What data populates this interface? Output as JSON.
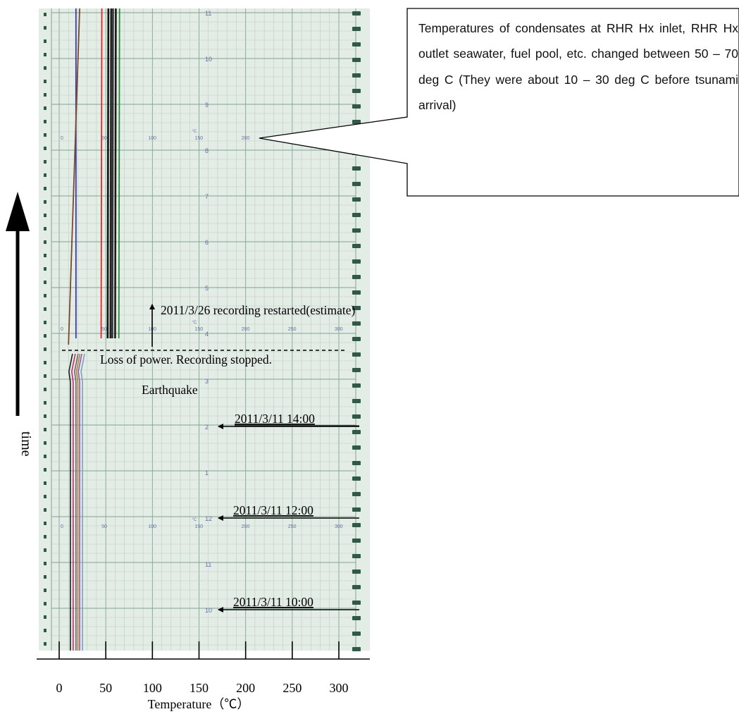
{
  "chart_data": {
    "type": "line",
    "title": "",
    "xlabel": "Temperature（℃）",
    "ylabel": "time",
    "xlim": [
      0,
      300
    ],
    "x_ticks": [
      0,
      50,
      100,
      150,
      200,
      250,
      300
    ],
    "paper_scale_labels": [
      "0",
      "50",
      "100",
      "150",
      "200",
      "250",
      "300"
    ],
    "paper_hour_labels_upper": [
      "4",
      "5",
      "6",
      "7",
      "8",
      "9",
      "10",
      "11"
    ],
    "paper_hour_labels_lower": [
      "10",
      "11",
      "12",
      "1",
      "2",
      "3"
    ],
    "paper_unit_label": "°C",
    "grid": true,
    "series_before_power_loss": {
      "description_range_degC": [
        10,
        30
      ],
      "colors": [
        "#1f1f1f",
        "#c03070",
        "#6a6a6a",
        "#b88040",
        "#8f5fa8",
        "#7aa0c0"
      ],
      "values": [
        12,
        15,
        18,
        20,
        22,
        25
      ]
    },
    "series_after_restart": {
      "colors": [
        "#3a3ab0",
        "#7a4a2a",
        "#e02828",
        "#111111",
        "#222222",
        "#333333",
        "#1a1a1a",
        "#2a8a3a"
      ],
      "values": [
        18,
        22,
        45,
        52,
        55,
        57,
        60,
        64
      ]
    }
  },
  "annotations": {
    "callout": "Temperatures of condensates at RHR Hx inlet, RHR Hx outlet seawater, fuel pool, etc. changed between 50 – 70 deg C (They were about 10 – 30 deg C before tsunami arrival)",
    "restart": "2011/3/26 recording restarted(estimate)",
    "power_loss": "Loss of power. Recording stopped.",
    "earthquake": "Earthquake",
    "t1400": "2011/3/11 14:00",
    "t1200": "2011/3/11 12:00",
    "t1000": "2011/3/11 10:00"
  },
  "colors": {
    "paper": "#e4ece6",
    "grid_minor": "#b9cfc2",
    "grid_major": "#7fa592",
    "sprocket": "#2f5a45",
    "scale_text": "#6a6fa8"
  }
}
